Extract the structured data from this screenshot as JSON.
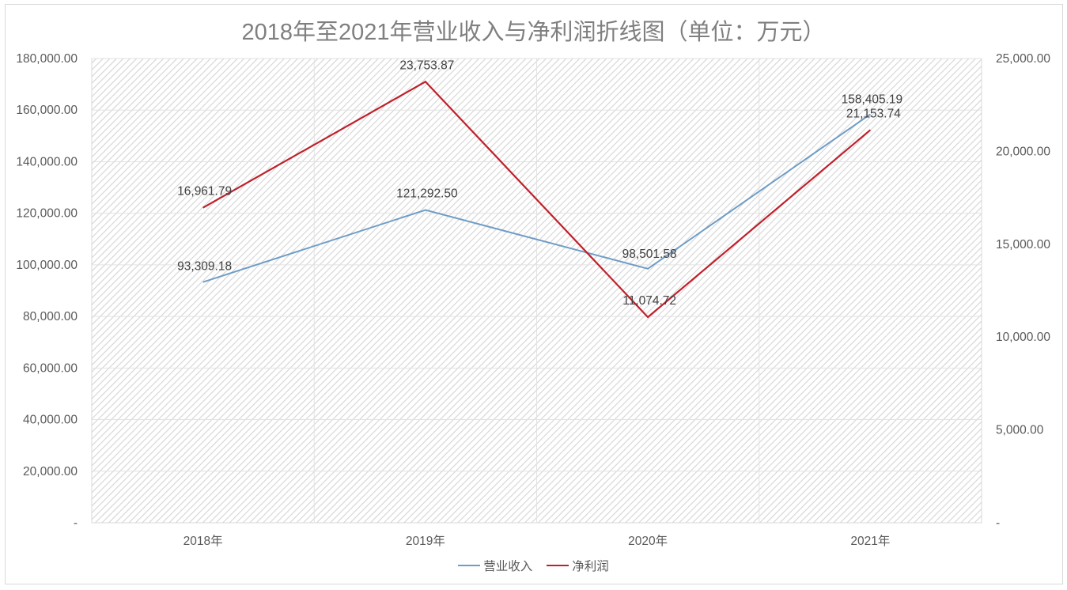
{
  "chart_data": {
    "type": "line",
    "title": "2018年至2021年营业收入与净利润折线图（单位：万元）",
    "categories": [
      "2018年",
      "2019年",
      "2020年",
      "2021年"
    ],
    "series": [
      {
        "name": "营业收入",
        "axis": "left",
        "color": "#6f9dc6",
        "values": [
          93309.18,
          121292.5,
          98501.58,
          158405.19
        ],
        "labels": [
          "93,309.18",
          "121,292.50",
          "98,501.58",
          "158,405.19"
        ]
      },
      {
        "name": "净利润",
        "axis": "right",
        "color": "#c0202a",
        "values": [
          16961.79,
          23753.87,
          11074.72,
          21153.74
        ],
        "labels": [
          "16,961.79",
          "23,753.87",
          "11,074.72",
          "21,153.74"
        ]
      }
    ],
    "left_axis": {
      "min": 0,
      "max": 180000,
      "step": 20000,
      "ticks": [
        "-",
        "20,000.00",
        "40,000.00",
        "60,000.00",
        "80,000.00",
        "100,000.00",
        "120,000.00",
        "140,000.00",
        "160,000.00",
        "180,000.00"
      ]
    },
    "right_axis": {
      "min": 0,
      "max": 25000,
      "step": 5000,
      "ticks": [
        "-",
        "5,000.00",
        "10,000.00",
        "15,000.00",
        "20,000.00",
        "25,000.00"
      ]
    },
    "xlabel": "",
    "ylabel": "",
    "grid": true,
    "legend_position": "bottom",
    "plot_background": "diagonal-hatch light gray"
  },
  "legend": {
    "items": [
      {
        "label": "营业收入",
        "color": "#6f9dc6"
      },
      {
        "label": "净利润",
        "color": "#c0202a"
      }
    ]
  }
}
